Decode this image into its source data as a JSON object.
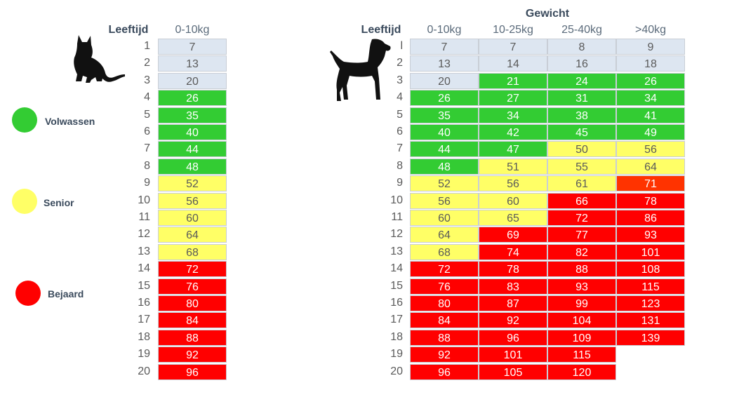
{
  "legend": [
    {
      "label": "Volwassen",
      "color": "#33cc33"
    },
    {
      "label": "Senior",
      "color": "#ffff66"
    },
    {
      "label": "Bejaard",
      "color": "#ff0000"
    }
  ],
  "cat_table": {
    "age_header": "Leeftijd",
    "columns": [
      "0-10kg"
    ],
    "ages": [
      "1",
      "2",
      "3",
      "4",
      "5",
      "6",
      "7",
      "8",
      "9",
      "10",
      "11",
      "12",
      "13",
      "14",
      "15",
      "16",
      "17",
      "18",
      "19",
      "20"
    ],
    "values": [
      [
        "7"
      ],
      [
        "13"
      ],
      [
        "20"
      ],
      [
        "26"
      ],
      [
        "35"
      ],
      [
        "40"
      ],
      [
        "44"
      ],
      [
        "48"
      ],
      [
        "52"
      ],
      [
        "56"
      ],
      [
        "60"
      ],
      [
        "64"
      ],
      [
        "68"
      ],
      [
        "72"
      ],
      [
        "76"
      ],
      [
        "80"
      ],
      [
        "84"
      ],
      [
        "88"
      ],
      [
        "92"
      ],
      [
        "96"
      ]
    ],
    "stages": [
      [
        "young"
      ],
      [
        "young"
      ],
      [
        "young"
      ],
      [
        "adult"
      ],
      [
        "adult"
      ],
      [
        "adult"
      ],
      [
        "adult"
      ],
      [
        "adult"
      ],
      [
        "senior"
      ],
      [
        "senior"
      ],
      [
        "senior"
      ],
      [
        "senior"
      ],
      [
        "senior"
      ],
      [
        "elder"
      ],
      [
        "elder"
      ],
      [
        "elder"
      ],
      [
        "elder"
      ],
      [
        "elder"
      ],
      [
        "elder"
      ],
      [
        "elder"
      ]
    ]
  },
  "dog_table": {
    "group_header": "Gewicht",
    "age_header": "Leeftijd",
    "columns": [
      "0-10kg",
      "10-25kg",
      "25-40kg",
      ">40kg"
    ],
    "ages": [
      "l",
      "2",
      "3",
      "4",
      "5",
      "6",
      "7",
      "8",
      "9",
      "10",
      "11",
      "12",
      "13",
      "14",
      "15",
      "16",
      "17",
      "18",
      "19",
      "20"
    ],
    "values": [
      [
        "7",
        "7",
        "8",
        "9"
      ],
      [
        "13",
        "14",
        "16",
        "18"
      ],
      [
        "20",
        "21",
        "24",
        "26"
      ],
      [
        "26",
        "27",
        "31",
        "34"
      ],
      [
        "35",
        "34",
        "38",
        "41"
      ],
      [
        "40",
        "42",
        "45",
        "49"
      ],
      [
        "44",
        "47",
        "50",
        "56"
      ],
      [
        "48",
        "51",
        "55",
        "64"
      ],
      [
        "52",
        "56",
        "61",
        "71"
      ],
      [
        "56",
        "60",
        "66",
        "78"
      ],
      [
        "60",
        "65",
        "72",
        "86"
      ],
      [
        "64",
        "69",
        "77",
        "93"
      ],
      [
        "68",
        "74",
        "82",
        "101"
      ],
      [
        "72",
        "78",
        "88",
        "108"
      ],
      [
        "76",
        "83",
        "93",
        "115"
      ],
      [
        "80",
        "87",
        "99",
        "123"
      ],
      [
        "84",
        "92",
        "104",
        "131"
      ],
      [
        "88",
        "96",
        "109",
        "139"
      ],
      [
        "92",
        "101",
        "115",
        ""
      ],
      [
        "96",
        "105",
        "120",
        ""
      ]
    ],
    "stages": [
      [
        "young",
        "young",
        "young",
        "young"
      ],
      [
        "young",
        "young",
        "young",
        "young"
      ],
      [
        "young",
        "adult",
        "adult",
        "adult"
      ],
      [
        "adult",
        "adult",
        "adult",
        "adult"
      ],
      [
        "adult",
        "adult",
        "adult",
        "adult"
      ],
      [
        "adult",
        "adult",
        "adult",
        "adult"
      ],
      [
        "adult",
        "adult",
        "senior",
        "senior"
      ],
      [
        "adult",
        "senior",
        "senior",
        "senior"
      ],
      [
        "senior",
        "senior",
        "senior",
        "elder2"
      ],
      [
        "senior",
        "senior",
        "elder",
        "elder"
      ],
      [
        "senior",
        "senior",
        "elder",
        "elder"
      ],
      [
        "senior",
        "elder",
        "elder",
        "elder"
      ],
      [
        "senior",
        "elder",
        "elder",
        "elder"
      ],
      [
        "elder",
        "elder",
        "elder",
        "elder"
      ],
      [
        "elder",
        "elder",
        "elder",
        "elder"
      ],
      [
        "elder",
        "elder",
        "elder",
        "elder"
      ],
      [
        "elder",
        "elder",
        "elder",
        "elder"
      ],
      [
        "elder",
        "elder",
        "elder",
        "elder"
      ],
      [
        "elder",
        "elder",
        "elder",
        "none"
      ],
      [
        "elder",
        "elder",
        "elder",
        "none"
      ]
    ]
  },
  "icons": {
    "cat": "cat-silhouette-icon",
    "dog": "dog-silhouette-icon"
  }
}
